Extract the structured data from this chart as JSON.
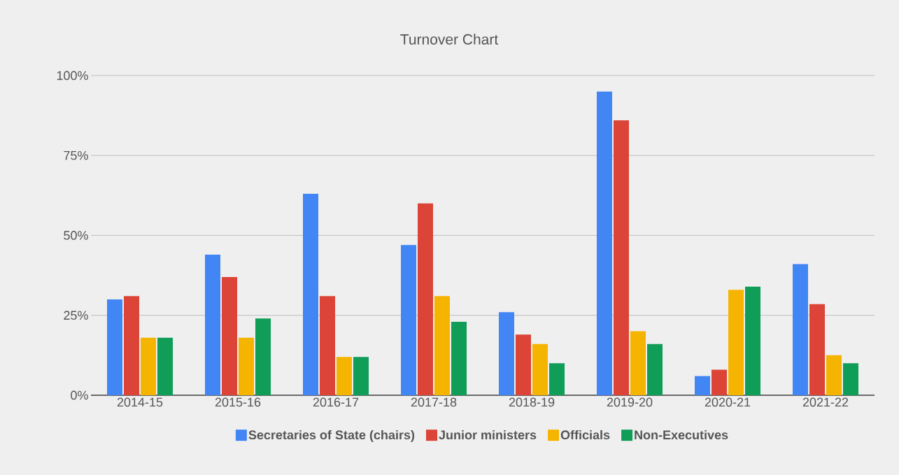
{
  "chart_data": {
    "type": "bar",
    "title": "Turnover Chart",
    "categories": [
      "2014-15",
      "2015-16",
      "2016-17",
      "2017-18",
      "2018-19",
      "2019-20",
      "2020-21",
      "2021-22"
    ],
    "series": [
      {
        "name": "Secretaries of State (chairs)",
        "color": "#4285f4",
        "values": [
          30,
          44,
          63,
          47,
          26,
          95,
          6,
          41
        ]
      },
      {
        "name": "Junior ministers",
        "color": "#db4437",
        "values": [
          31,
          37,
          31,
          60,
          19,
          86,
          8,
          28.5
        ]
      },
      {
        "name": "Officials",
        "color": "#f4b400",
        "values": [
          18,
          18,
          12,
          31,
          16,
          20,
          33,
          12.5
        ]
      },
      {
        "name": "Non-Executives",
        "color": "#0f9d58",
        "values": [
          18,
          24,
          12,
          23,
          10,
          16,
          34,
          10
        ]
      }
    ],
    "ylim": [
      0,
      100
    ],
    "yticks": [
      {
        "value": 0,
        "label": "0%"
      },
      {
        "value": 25,
        "label": "25%"
      },
      {
        "value": 50,
        "label": "50%"
      },
      {
        "value": 75,
        "label": "75%"
      },
      {
        "value": 100,
        "label": "100%"
      }
    ],
    "grid": "y",
    "legend": "bottom"
  }
}
